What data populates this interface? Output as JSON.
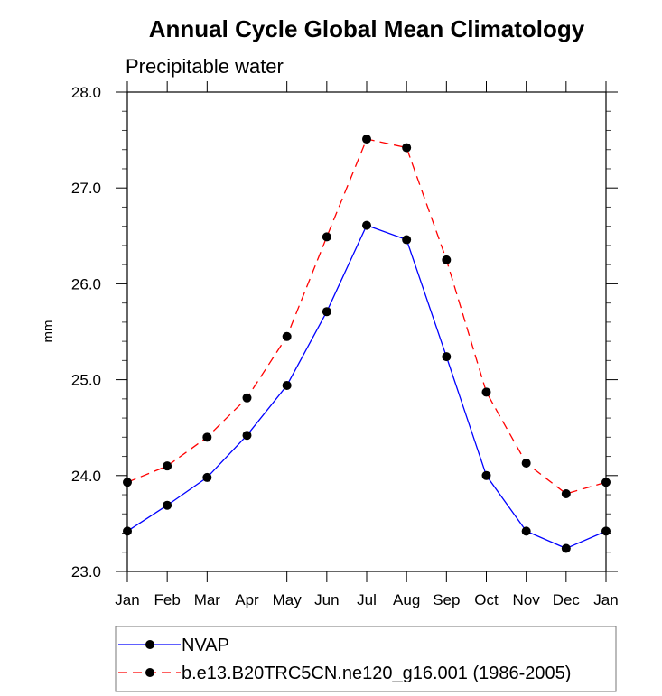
{
  "chart_data": {
    "type": "line",
    "title": "Annual Cycle Global Mean Climatology",
    "subtitle": "Precipitable water",
    "xlabel": "",
    "ylabel": "mm",
    "categories": [
      "Jan",
      "Feb",
      "Mar",
      "Apr",
      "May",
      "Jun",
      "Jul",
      "Aug",
      "Sep",
      "Oct",
      "Nov",
      "Dec",
      "Jan"
    ],
    "ylim": [
      23.0,
      28.0
    ],
    "yticks": [
      23.0,
      24.0,
      25.0,
      26.0,
      27.0,
      28.0
    ],
    "ytick_labels": [
      "23.0",
      "24.0",
      "25.0",
      "26.0",
      "27.0",
      "28.0"
    ],
    "y_minor_step": 0.2,
    "grid": false,
    "legend_position": "bottom",
    "series": [
      {
        "name": "NVAP",
        "color": "#0000ff",
        "line_style": "solid",
        "marker": "filled-circle",
        "values": [
          23.42,
          23.69,
          23.98,
          24.42,
          24.94,
          25.71,
          26.61,
          26.46,
          25.24,
          24.0,
          23.42,
          23.24,
          23.42
        ]
      },
      {
        "name": "b.e13.B20TRC5CN.ne120_g16.001 (1986-2005)",
        "color": "#ff0000",
        "line_style": "dashed",
        "marker": "filled-circle",
        "values": [
          23.93,
          24.1,
          24.4,
          24.81,
          25.45,
          26.49,
          27.51,
          27.42,
          26.25,
          24.87,
          24.13,
          23.81,
          23.93
        ]
      }
    ]
  }
}
